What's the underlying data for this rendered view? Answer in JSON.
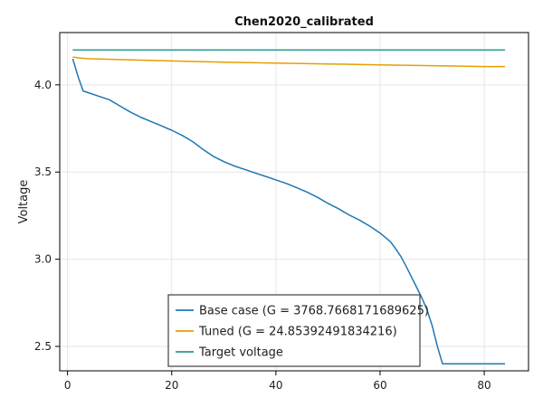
{
  "chart_data": {
    "type": "line",
    "title": "Chen2020_calibrated",
    "xlabel": "",
    "ylabel": "Voltage",
    "xlim": [
      -1.5,
      88.5
    ],
    "ylim": [
      2.36,
      4.3
    ],
    "xticks": [
      0,
      20,
      40,
      60,
      80
    ],
    "yticks": [
      2.5,
      3.0,
      3.5,
      4.0
    ],
    "xtick_labels": [
      "0",
      "20",
      "40",
      "60",
      "80"
    ],
    "ytick_labels": [
      "2.5",
      "3.0",
      "3.5",
      "4.0"
    ],
    "grid": true,
    "legend_position": "bottom-center",
    "series": [
      {
        "name": "Base case (G = 3768.7668171689625)",
        "color": "#1f77b4",
        "x": [
          1,
          2,
          3,
          4,
          6,
          8,
          10,
          12,
          14,
          16,
          18,
          20,
          22,
          24,
          26,
          28,
          30,
          32,
          34,
          36,
          38,
          40,
          42,
          44,
          46,
          48,
          50,
          52,
          54,
          56,
          58,
          60,
          62,
          63,
          64,
          65,
          66,
          67,
          68,
          69,
          70,
          71,
          72,
          73,
          74,
          76,
          78,
          80,
          82,
          84
        ],
        "y": [
          4.15,
          4.05,
          3.965,
          3.955,
          3.935,
          3.915,
          3.88,
          3.845,
          3.815,
          3.79,
          3.765,
          3.74,
          3.71,
          3.675,
          3.63,
          3.59,
          3.56,
          3.535,
          3.515,
          3.495,
          3.475,
          3.455,
          3.435,
          3.41,
          3.385,
          3.355,
          3.32,
          3.29,
          3.255,
          3.225,
          3.19,
          3.15,
          3.1,
          3.06,
          3.015,
          2.96,
          2.9,
          2.84,
          2.78,
          2.71,
          2.62,
          2.5,
          2.4,
          2.4,
          2.4,
          2.4,
          2.4,
          2.4,
          2.4,
          2.4
        ]
      },
      {
        "name": "Tuned (G = 24.85392491834216)",
        "color": "#e69f00",
        "x": [
          1,
          2,
          4,
          10,
          20,
          30,
          40,
          50,
          60,
          70,
          80,
          84
        ],
        "y": [
          4.16,
          4.155,
          4.15,
          4.145,
          4.137,
          4.13,
          4.125,
          4.12,
          4.115,
          4.11,
          4.105,
          4.105
        ]
      },
      {
        "name": "Target voltage",
        "color": "#2a9d8f",
        "x": [
          1,
          84
        ],
        "y": [
          4.2,
          4.2
        ]
      }
    ]
  }
}
